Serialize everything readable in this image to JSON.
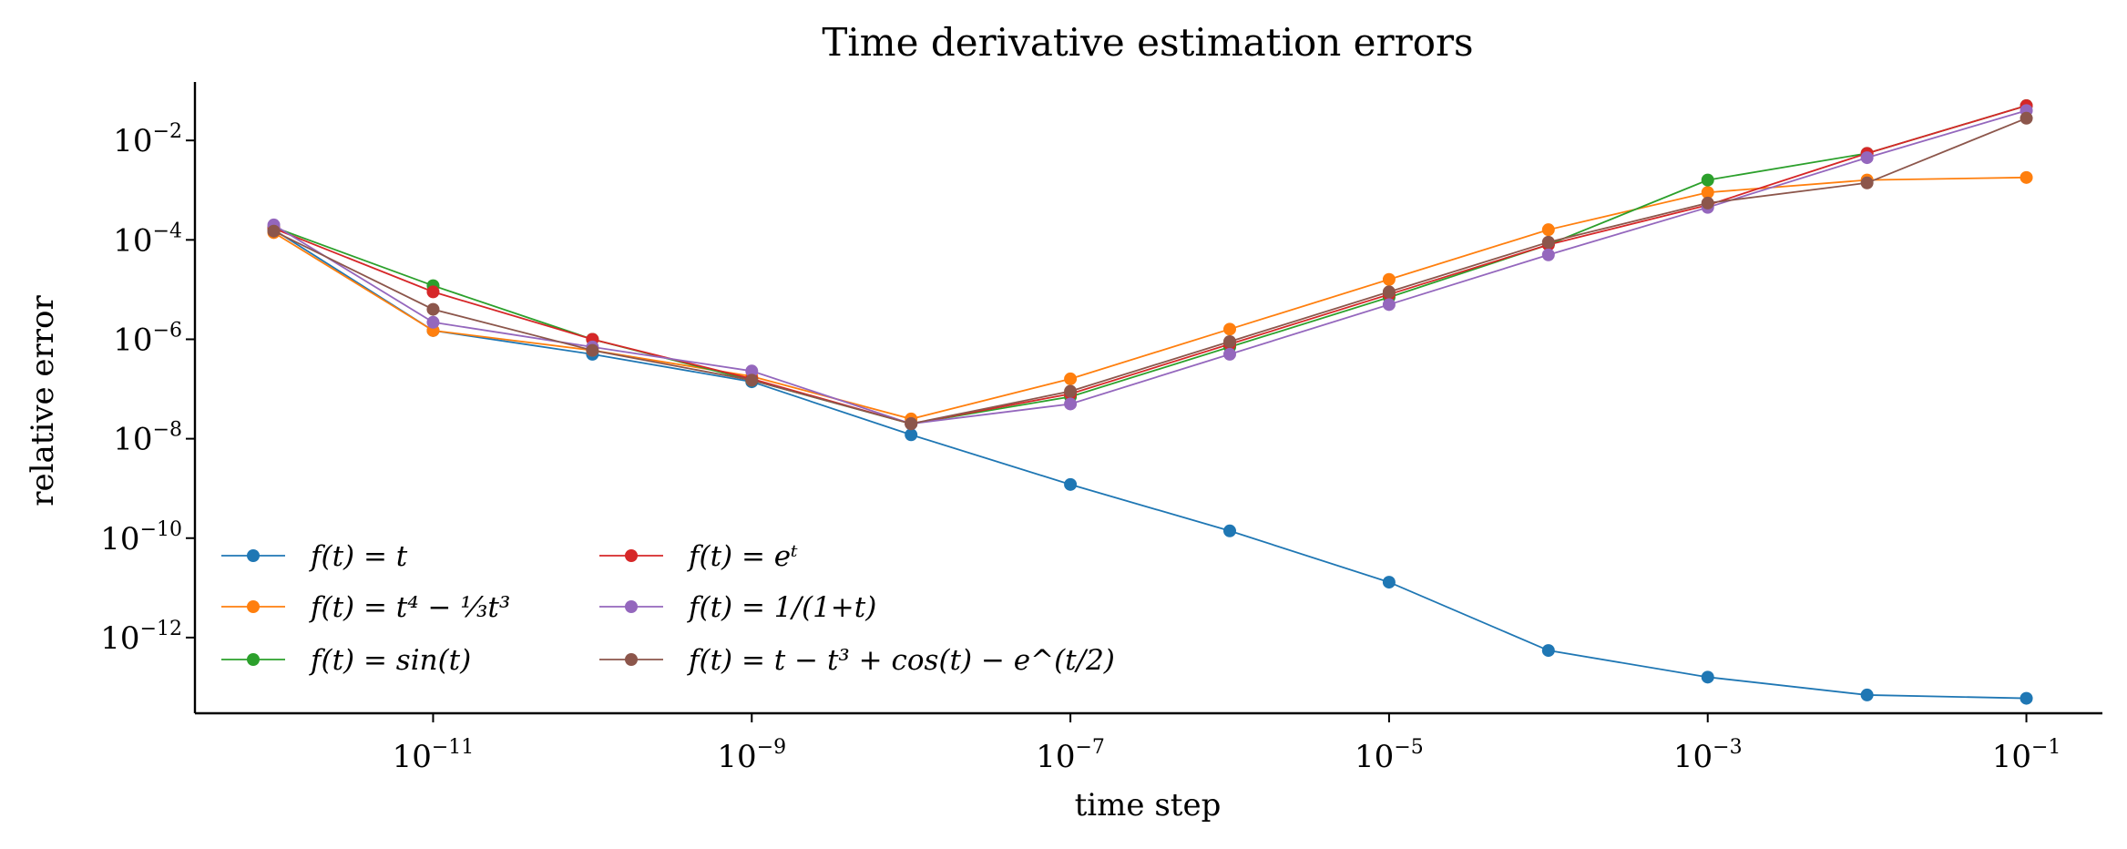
{
  "chart_data": {
    "type": "line",
    "title": "Time derivative estimation errors",
    "xlabel": "time step",
    "ylabel": "relative error",
    "x_scale": "log",
    "y_scale": "log",
    "x": [
      1e-12,
      1e-11,
      1e-10,
      1e-09,
      1e-08,
      1e-07,
      1e-06,
      1e-05,
      0.0001,
      0.001,
      0.01,
      0.1
    ],
    "xlim": [
      3.2e-13,
      0.3
    ],
    "ylim": [
      3e-14,
      0.15
    ],
    "x_ticks": [
      {
        "base": "10",
        "exp": "−11",
        "value": 1e-11
      },
      {
        "base": "10",
        "exp": "−9",
        "value": 1e-09
      },
      {
        "base": "10",
        "exp": "−7",
        "value": 1e-07
      },
      {
        "base": "10",
        "exp": "−5",
        "value": 1e-05
      },
      {
        "base": "10",
        "exp": "−3",
        "value": 0.001
      },
      {
        "base": "10",
        "exp": "−1",
        "value": 0.1
      }
    ],
    "y_ticks": [
      {
        "base": "10",
        "exp": "−2",
        "value": 0.01
      },
      {
        "base": "10",
        "exp": "−4",
        "value": 0.0001
      },
      {
        "base": "10",
        "exp": "−6",
        "value": 1e-06
      },
      {
        "base": "10",
        "exp": "−8",
        "value": 1e-08
      },
      {
        "base": "10",
        "exp": "−10",
        "value": 1e-10
      },
      {
        "base": "10",
        "exp": "−12",
        "value": 1e-12
      }
    ],
    "grid": false,
    "legend_position": "lower-left",
    "legend_columns": 2,
    "series": [
      {
        "name": "f(t) = t",
        "color": "#1f77b4",
        "values": [
          0.00016,
          1.5e-06,
          5e-07,
          1.4e-07,
          1.2e-08,
          1.2e-09,
          1.4e-10,
          1.3e-11,
          5.5e-13,
          1.6e-13,
          7e-14,
          6e-14
        ]
      },
      {
        "name": "f(t) = t⁴ − ⅓t³",
        "color": "#ff7f0e",
        "values": [
          0.00014,
          1.5e-06,
          6e-07,
          1.8e-07,
          2.5e-08,
          1.6e-07,
          1.6e-06,
          1.6e-05,
          0.00016,
          0.0009,
          0.0016,
          0.0018
        ]
      },
      {
        "name": "f(t) = sin(t)",
        "color": "#2ca02c",
        "values": [
          0.00018,
          1.2e-05,
          1e-06,
          1.5e-07,
          2e-08,
          7e-08,
          7e-07,
          7e-06,
          8e-05,
          0.0016,
          0.0055,
          0.05
        ]
      },
      {
        "name": "f(t) = eᵗ",
        "color": "#d62728",
        "values": [
          0.00017,
          9e-06,
          1e-06,
          1.6e-07,
          2e-08,
          8e-08,
          8e-07,
          8e-06,
          8e-05,
          0.0005,
          0.0055,
          0.05
        ]
      },
      {
        "name": "f(t) = 1/(1+t)",
        "color": "#9467bd",
        "values": [
          0.0002,
          2.2e-06,
          7e-07,
          2.3e-07,
          2e-08,
          5e-08,
          5e-07,
          5e-06,
          5e-05,
          0.00045,
          0.0045,
          0.04
        ]
      },
      {
        "name": "f(t) = t − t³ + cos(t) − e^(t/2)",
        "color": "#8c564b",
        "values": [
          0.00015,
          4e-06,
          6e-07,
          1.5e-07,
          2e-08,
          9e-08,
          9e-07,
          9e-06,
          9e-05,
          0.00055,
          0.0014,
          0.028
        ]
      }
    ]
  }
}
